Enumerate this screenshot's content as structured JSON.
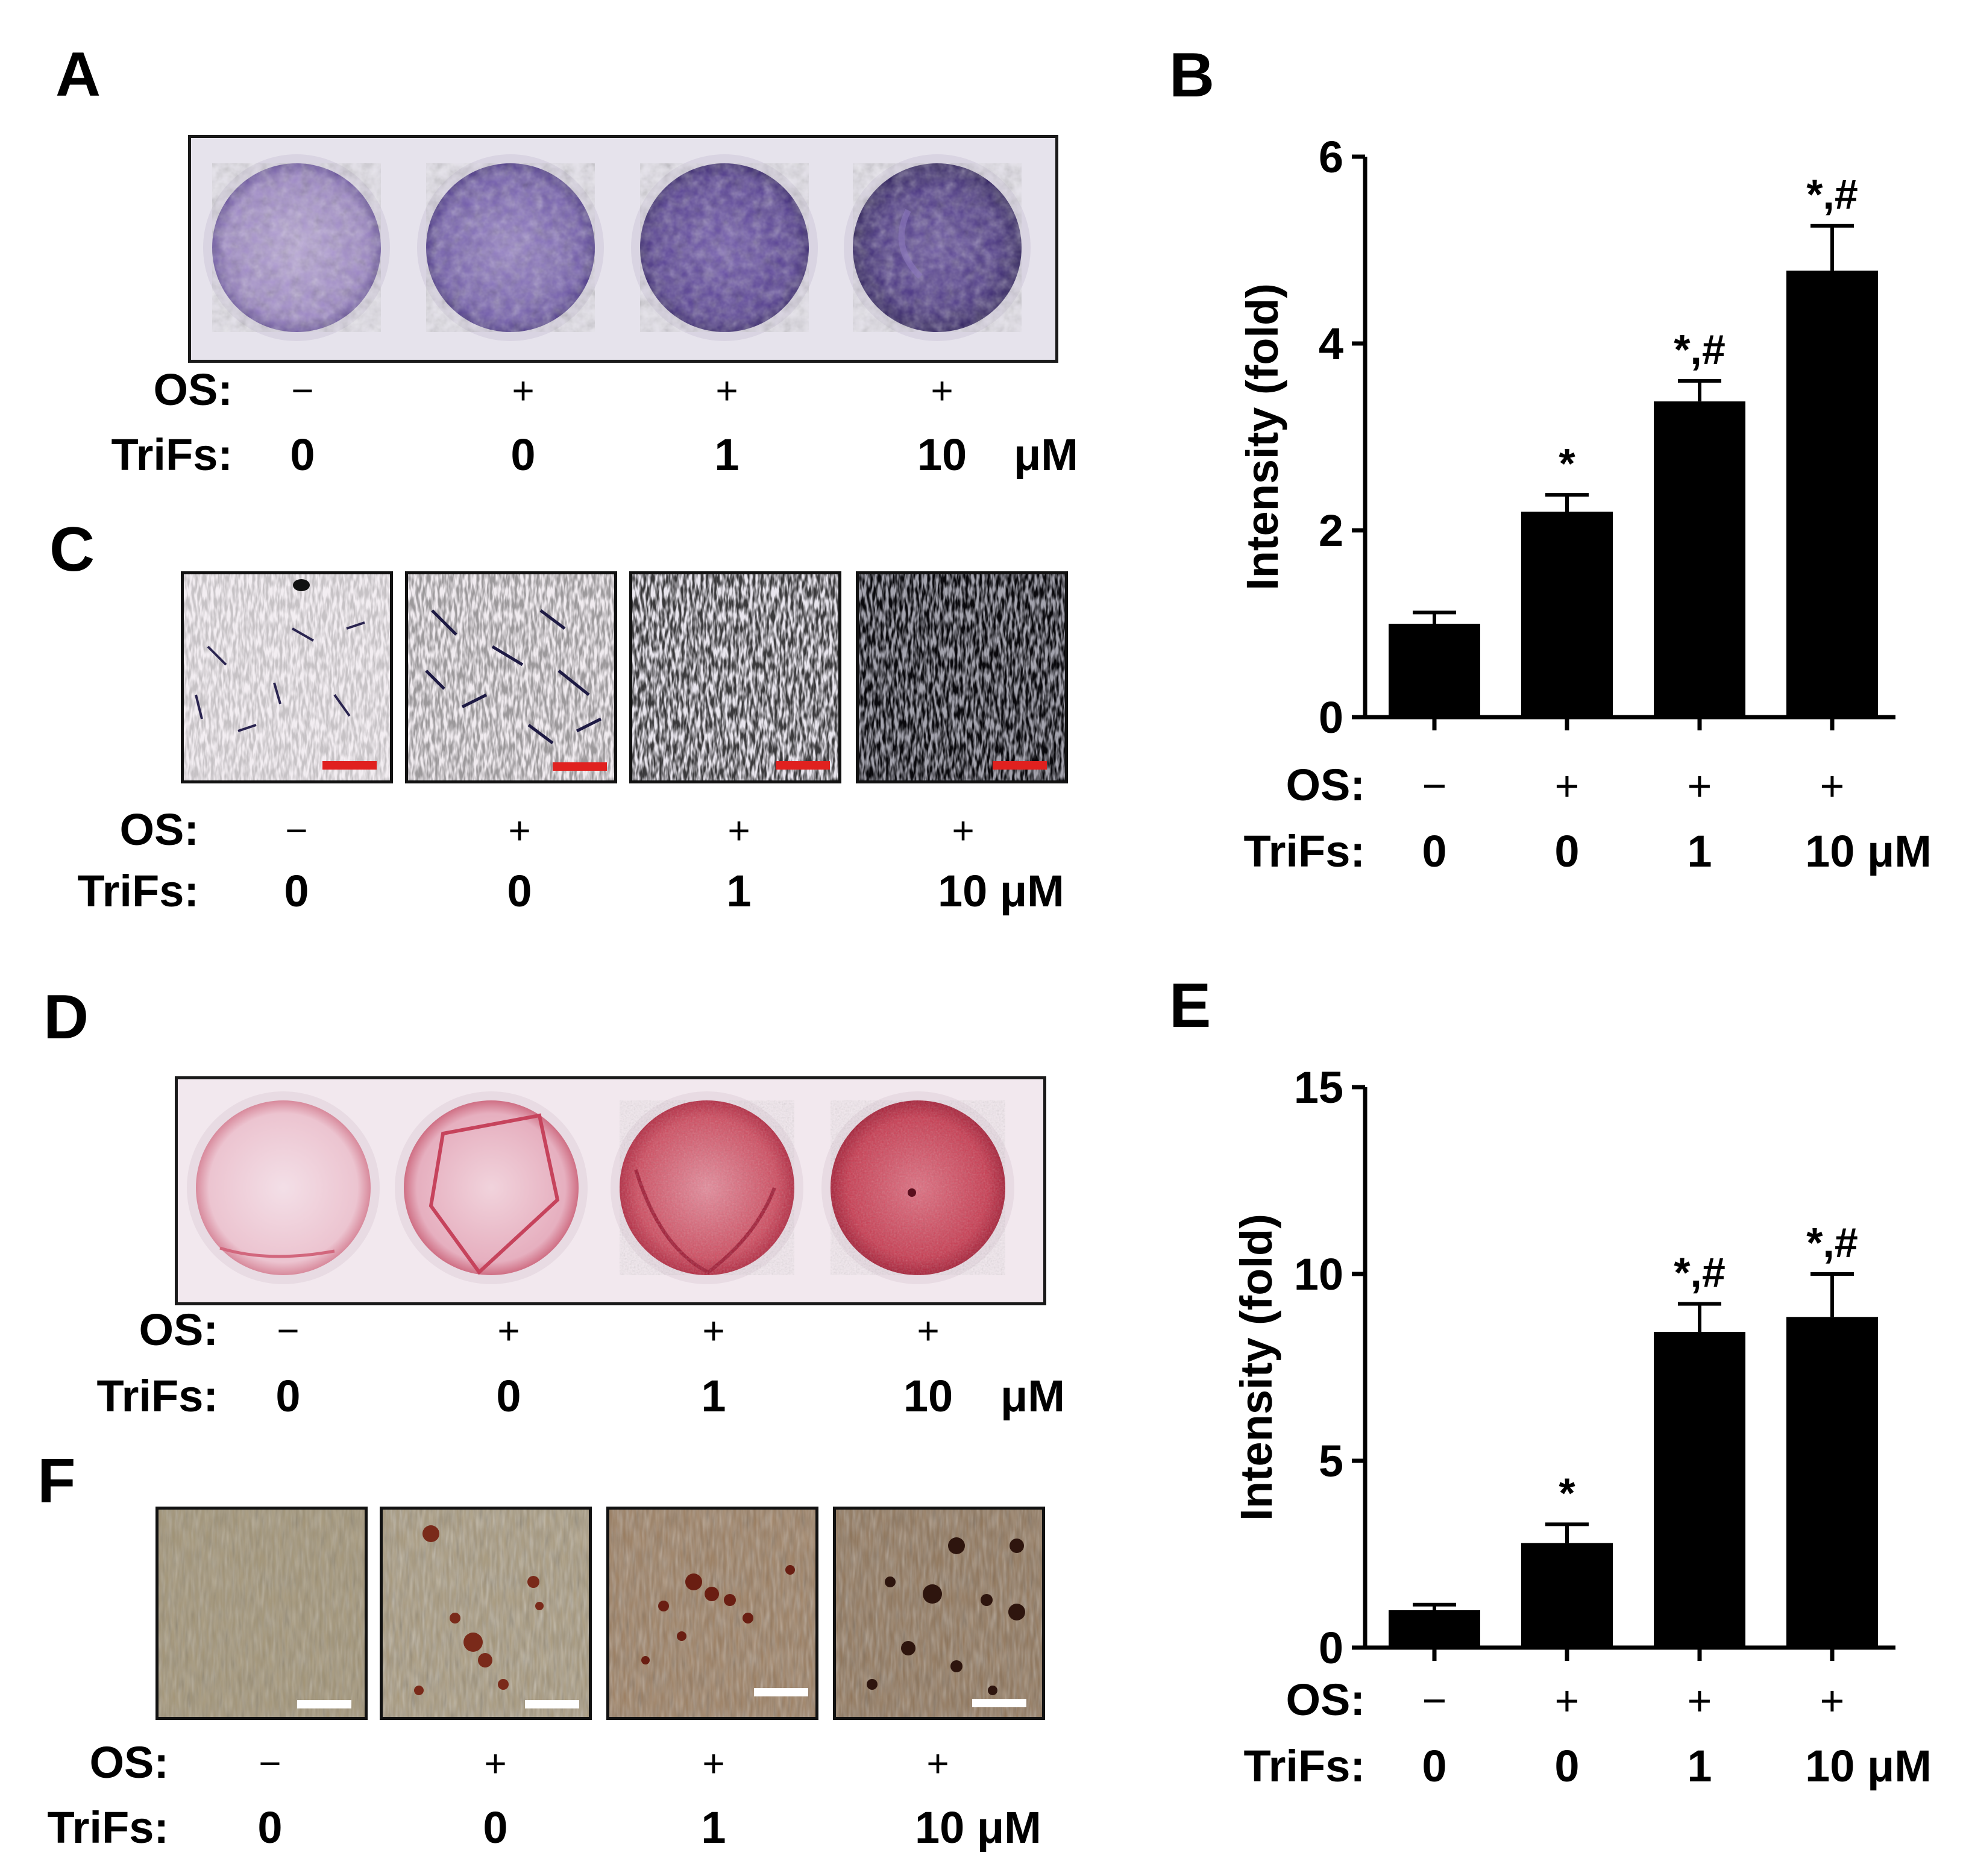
{
  "panels": {
    "A": {
      "label": "A",
      "os_label": "OS:",
      "trifs_label": "TriFs:",
      "os": [
        "−",
        "+",
        "+",
        "+"
      ],
      "trifs": [
        "0",
        "0",
        "1",
        "10"
      ],
      "unit": "μM"
    },
    "C": {
      "label": "C",
      "os_label": "OS:",
      "trifs_label": "TriFs:",
      "os": [
        "−",
        "+",
        "+",
        "+"
      ],
      "trifs": [
        "0",
        "0",
        "1",
        "10 μM"
      ]
    },
    "D": {
      "label": "D",
      "os_label": "OS:",
      "trifs_label": "TriFs:",
      "os": [
        "−",
        "+",
        "+",
        "+"
      ],
      "trifs": [
        "0",
        "0",
        "1",
        "10"
      ],
      "unit": "μM"
    },
    "F": {
      "label": "F",
      "os_label": "OS:",
      "trifs_label": "TriFs:",
      "os": [
        "−",
        "+",
        "+",
        "+"
      ],
      "trifs": [
        "0",
        "0",
        "1",
        "10 μM"
      ]
    }
  },
  "colors": {
    "alp_stain": "#5b3f94",
    "alp_light": "#b8a6d6",
    "ars_stain": "#c0283a",
    "ars_light": "#efc9cf",
    "scale_red": "#e0211f",
    "scale_white": "#ffffff",
    "bar_fill": "#000000"
  },
  "chart_data": [
    {
      "panel": "B",
      "label": "B",
      "type": "bar",
      "ylabel": "Intensity (fold)",
      "ylim": [
        0,
        6
      ],
      "yticks": [
        0,
        2,
        4,
        6
      ],
      "values": [
        1.0,
        2.2,
        3.38,
        4.78
      ],
      "errors": [
        0.12,
        0.18,
        0.22,
        0.48
      ],
      "annotations": [
        "",
        "*",
        "*,#",
        "*,#"
      ],
      "os_label": "OS:",
      "trifs_label": "TriFs:",
      "os": [
        "−",
        "+",
        "+",
        "+"
      ],
      "trifs": [
        "0",
        "0",
        "1",
        "10 μM"
      ]
    },
    {
      "panel": "E",
      "label": "E",
      "type": "bar",
      "ylabel": "Intensity (fold)",
      "ylim": [
        0,
        15
      ],
      "yticks": [
        0,
        5,
        10,
        15
      ],
      "values": [
        1.0,
        2.8,
        8.45,
        8.85
      ],
      "errors": [
        0.15,
        0.5,
        0.75,
        1.15
      ],
      "annotations": [
        "",
        "*",
        "*,#",
        "*,#"
      ],
      "os_label": "OS:",
      "trifs_label": "TriFs:",
      "os": [
        "−",
        "+",
        "+",
        "+"
      ],
      "trifs": [
        "0",
        "0",
        "1",
        "10 μM"
      ]
    }
  ]
}
